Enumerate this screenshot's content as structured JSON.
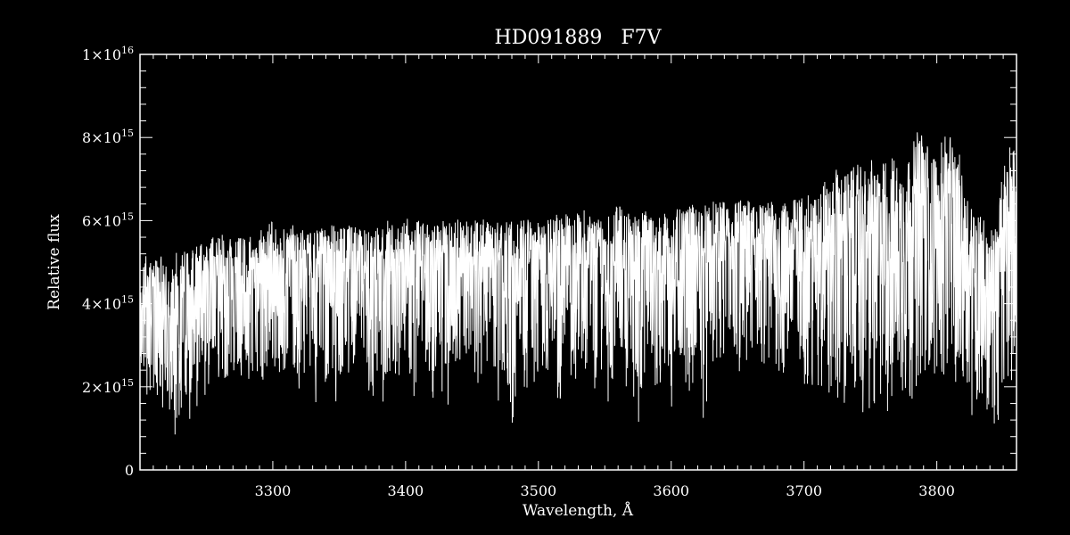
{
  "colors": {
    "background": "#000000",
    "foreground": "#ffffff"
  },
  "chart_data": {
    "type": "line",
    "title": "HD091889   F7V",
    "xlabel": "Wavelength, Å",
    "ylabel": "Relative flux",
    "xlim": [
      3200,
      3860
    ],
    "ylim": [
      0,
      1e+16
    ],
    "grid": false,
    "x_ticks": [
      {
        "value": 3300,
        "label": "3300"
      },
      {
        "value": 3400,
        "label": "3400"
      },
      {
        "value": 3500,
        "label": "3500"
      },
      {
        "value": 3600,
        "label": "3600"
      },
      {
        "value": 3700,
        "label": "3700"
      },
      {
        "value": 3800,
        "label": "3800"
      }
    ],
    "y_ticks": [
      {
        "value": 0,
        "label": "0",
        "exp": ""
      },
      {
        "value": 2000000000000000.0,
        "label": "2×10",
        "exp": "15"
      },
      {
        "value": 4000000000000000.0,
        "label": "4×10",
        "exp": "15"
      },
      {
        "value": 6000000000000000.0,
        "label": "6×10",
        "exp": "15"
      },
      {
        "value": 8000000000000000.0,
        "label": "8×10",
        "exp": "15"
      },
      {
        "value": 1e+16,
        "label": "1×10",
        "exp": "16"
      }
    ],
    "series": [
      {
        "x": [
          3200,
          3205,
          3210,
          3215,
          3220,
          3225,
          3230,
          3235,
          3240,
          3245,
          3250,
          3255,
          3260,
          3265,
          3270,
          3275,
          3280,
          3285,
          3290,
          3295,
          3300,
          3305,
          3310,
          3315,
          3320,
          3325,
          3330,
          3335,
          3340,
          3345,
          3350,
          3355,
          3360,
          3365,
          3370,
          3375,
          3380,
          3385,
          3390,
          3395,
          3400,
          3405,
          3410,
          3415,
          3420,
          3425,
          3430,
          3435,
          3440,
          3445,
          3450,
          3455,
          3460,
          3465,
          3470,
          3475,
          3480,
          3485,
          3490,
          3495,
          3500,
          3505,
          3510,
          3515,
          3520,
          3525,
          3530,
          3535,
          3540,
          3545,
          3550,
          3555,
          3560,
          3565,
          3570,
          3575,
          3580,
          3585,
          3590,
          3595,
          3600,
          3605,
          3610,
          3615,
          3620,
          3625,
          3630,
          3635,
          3640,
          3645,
          3650,
          3655,
          3660,
          3665,
          3670,
          3675,
          3680,
          3685,
          3690,
          3695,
          3700,
          3705,
          3710,
          3715,
          3720,
          3725,
          3730,
          3735,
          3740,
          3745,
          3750,
          3755,
          3760,
          3765,
          3770,
          3775,
          3780,
          3785,
          3790,
          3795,
          3800,
          3805,
          3810,
          3815,
          3820,
          3825,
          3830,
          3835,
          3840,
          3845,
          3850,
          3855,
          3860
        ],
        "max": [
          5400000000000000.0,
          5200000000000000.0,
          5000000000000000.0,
          5300000000000000.0,
          5100000000000000.0,
          5300000000000000.0,
          5400000000000000.0,
          5200000000000000.0,
          5300000000000000.0,
          5500000000000000.0,
          5400000000000000.0,
          5600000000000000.0,
          5700000000000000.0,
          5600000000000000.0,
          5700000000000000.0,
          5600000000000000.0,
          5700000000000000.0,
          5600000000000000.0,
          5800000000000000.0,
          5900000000000000.0,
          6000000000000000.0,
          5900000000000000.0,
          5800000000000000.0,
          5900000000000000.0,
          5900000000000000.0,
          5700000000000000.0,
          5800000000000000.0,
          5800000000000000.0,
          5900000000000000.0,
          5900000000000000.0,
          5900000000000000.0,
          5800000000000000.0,
          6000000000000000.0,
          5800000000000000.0,
          5900000000000000.0,
          5900000000000000.0,
          5800000000000000.0,
          6100000000000000.0,
          5900000000000000.0,
          5800000000000000.0,
          6100000000000000.0,
          5900000000000000.0,
          6000000000000000.0,
          5900000000000000.0,
          6000000000000000.0,
          6100000000000000.0,
          6000000000000000.0,
          6000000000000000.0,
          6100000000000000.0,
          6000000000000000.0,
          6000000000000000.0,
          6100000000000000.0,
          6000000000000000.0,
          5900000000000000.0,
          6000000000000000.0,
          6000000000000000.0,
          6100000000000000.0,
          6000000000000000.0,
          6100000000000000.0,
          6000000000000000.0,
          6100000000000000.0,
          6000000000000000.0,
          6100000000000000.0,
          6300000000000000.0,
          6200000000000000.0,
          6100000000000000.0,
          6200000000000000.0,
          6300000000000000.0,
          6200000000000000.0,
          6100000000000000.0,
          6300000000000000.0,
          6200000000000000.0,
          6400000000000000.0,
          6300000000000000.0,
          6200000000000000.0,
          6100000000000000.0,
          6300000000000000.0,
          6200000000000000.0,
          6100000000000000.0,
          6200000000000000.0,
          6100000000000000.0,
          6300000000000000.0,
          6200000000000000.0,
          6400000000000000.0,
          6300000000000000.0,
          6400000000000000.0,
          6500000000000000.0,
          6400000000000000.0,
          6500000000000000.0,
          6300000000000000.0,
          6600000000000000.0,
          6400000000000000.0,
          6600000000000000.0,
          6500000000000000.0,
          6400000000000000.0,
          6500000000000000.0,
          6300000000000000.0,
          6400000000000000.0,
          6600000000000000.0,
          6500000000000000.0,
          6800000000000000.0,
          6500000000000000.0,
          6700000000000000.0,
          7000000000000000.0,
          6800000000000000.0,
          7300000000000000.0,
          7100000000000000.0,
          7200000000000000.0,
          7400000000000000.0,
          7200000000000000.0,
          7500000000000000.0,
          7300000000000000.0,
          7400000000000000.0,
          7600000000000000.0,
          7500000000000000.0,
          7300000000000000.0,
          7600000000000000.0,
          8200000000000000.0,
          8100000000000000.0,
          7700000000000000.0,
          7600000000000000.0,
          8000000000000000.0,
          8100000000000000.0,
          7900000000000000.0,
          7200000000000000.0,
          6500000000000000.0,
          6300000000000000.0,
          6100000000000000.0,
          5800000000000000.0,
          5900000000000000.0,
          7300000000000000.0,
          7900000000000000.0,
          7700000000000000.0
        ],
        "min": [
          1800000000000000.0,
          1500000000000000.0,
          1900000000000000.0,
          1300000000000000.0,
          1600000000000000.0,
          600000000000000.0,
          1300000000000000.0,
          1400000000000000.0,
          900000000000000.0,
          1400000000000000.0,
          1900000000000000.0,
          2300000000000000.0,
          2000000000000000.0,
          2200000000000000.0,
          2400000000000000.0,
          2300000000000000.0,
          1900000000000000.0,
          2400000000000000.0,
          2200000000000000.0,
          2000000000000000.0,
          2500000000000000.0,
          2300000000000000.0,
          2000000000000000.0,
          2200000000000000.0,
          1900000000000000.0,
          2100000000000000.0,
          1000000000000000.0,
          2300000000000000.0,
          1600000000000000.0,
          2400000000000000.0,
          900000000000000.0,
          2200000000000000.0,
          1500000000000000.0,
          2300000000000000.0,
          2000000000000000.0,
          1600000000000000.0,
          2400000000000000.0,
          1000000000000000.0,
          2300000000000000.0,
          2200000000000000.0,
          2300000000000000.0,
          1100000000000000.0,
          2400000000000000.0,
          2200000000000000.0,
          1600000000000000.0,
          2300000000000000.0,
          800000000000000.0,
          2400000000000000.0,
          2300000000000000.0,
          2000000000000000.0,
          2100000000000000.0,
          1000000000000000.0,
          2400000000000000.0,
          2200000000000000.0,
          1500000000000000.0,
          2300000000000000.0,
          900000000000000.0,
          2500000000000000.0,
          1800000000000000.0,
          2300000000000000.0,
          1700000000000000.0,
          2400000000000000.0,
          2100000000000000.0,
          1300000000000000.0,
          2500000000000000.0,
          2200000000000000.0,
          1900000000000000.0,
          2400000000000000.0,
          800000000000000.0,
          2500000000000000.0,
          2300000000000000.0,
          1000000000000000.0,
          2500000000000000.0,
          2100000000000000.0,
          1700000000000000.0,
          800000000000000.0,
          2300000000000000.0,
          2400000000000000.0,
          1600000000000000.0,
          2500000000000000.0,
          1300000000000000.0,
          2600000000000000.0,
          2200000000000000.0,
          1700000000000000.0,
          2400000000000000.0,
          1000000000000000.0,
          2700000000000000.0,
          2000000000000000.0,
          2500000000000000.0,
          2800000000000000.0,
          1700000000000000.0,
          2600000000000000.0,
          2400000000000000.0,
          2800000000000000.0,
          2100000000000000.0,
          2300000000000000.0,
          2500000000000000.0,
          1800000000000000.0,
          2600000000000000.0,
          1800000000000000.0,
          1900000000000000.0,
          2200000000000000.0,
          1000000000000000.0,
          2000000000000000.0,
          1600000000000000.0,
          1200000000000000.0,
          1600000000000000.0,
          900000000000000.0,
          2000000000000000.0,
          1000000000000000.0,
          1500000000000000.0,
          900000000000000.0,
          1800000000000000.0,
          900000000000000.0,
          1900000000000000.0,
          1300000000000000.0,
          1600000000000000.0,
          2000000000000000.0,
          2200000000000000.0,
          1700000000000000.0,
          2300000000000000.0,
          2100000000000000.0,
          2400000000000000.0,
          1100000000000000.0,
          1600000000000000.0,
          1400000000000000.0,
          1100000000000000.0,
          1700000000000000.0,
          1100000000000000.0,
          1000000000000000.0,
          1500000000000000.0,
          2000000000000000.0,
          2600000000000000.0
        ],
        "avg": [
          4200000000000000.0,
          3500000000000000.0,
          3700000000000000.0,
          3400000000000000.0,
          3300000000000000.0,
          3600000000000000.0,
          3800000000000000.0,
          3500000000000000.0,
          3900000000000000.0,
          4200000000000000.0,
          4300000000000000.0,
          4400000000000000.0,
          4500000000000000.0,
          4300000000000000.0,
          4600000000000000.0,
          4500000000000000.0,
          4400000000000000.0,
          4600000000000000.0,
          4500000000000000.0,
          4700000000000000.0,
          4800000000000000.0,
          4600000000000000.0,
          4700000000000000.0,
          4600000000000000.0,
          4800000000000000.0,
          4700000000000000.0,
          4500000000000000.0,
          4800000000000000.0,
          4600000000000000.0,
          4800000000000000.0,
          4900000000000000.0,
          4700000000000000.0,
          4800000000000000.0,
          4600000000000000.0,
          4800000000000000.0,
          4700000000000000.0,
          4900000000000000.0,
          4800000000000000.0,
          4600000000000000.0,
          4800000000000000.0,
          4700000000000000.0,
          4900000000000000.0,
          4800000000000000.0,
          4700000000000000.0,
          4800000000000000.0,
          4700000000000000.0,
          4900000000000000.0,
          4800000000000000.0,
          4700000000000000.0,
          4900000000000000.0,
          4800000000000000.0,
          4700000000000000.0,
          4900000000000000.0,
          4800000000000000.0,
          4600000000000000.0,
          4900000000000000.0,
          4800000000000000.0,
          4700000000000000.0,
          4900000000000000.0,
          4800000000000000.0,
          4900000000000000.0,
          5000000000000000.0,
          4800000000000000.0,
          5000000000000000.0,
          4900000000000000.0,
          4800000000000000.0,
          5000000000000000.0,
          4900000000000000.0,
          4800000000000000.0,
          5000000000000000.0,
          4900000000000000.0,
          4800000000000000.0,
          5000000000000000.0,
          4900000000000000.0,
          4800000000000000.0,
          5100000000000000.0,
          4900000000000000.0,
          5000000000000000.0,
          4800000000000000.0,
          5100000000000000.0,
          5000000000000000.0,
          4900000000000000.0,
          5100000000000000.0,
          5000000000000000.0,
          5200000000000000.0,
          5000000000000000.0,
          5100000000000000.0,
          5200000000000000.0,
          5000000000000000.0,
          5200000000000000.0,
          5300000000000000.0,
          5100000000000000.0,
          5200000000000000.0,
          5300000000000000.0,
          5100000000000000.0,
          5200000000000000.0,
          5300000000000000.0,
          5100000000000000.0,
          5200000000000000.0,
          5300000000000000.0,
          5400000000000000.0,
          5200000000000000.0,
          5300000000000000.0,
          5500000000000000.0,
          5300000000000000.0,
          5600000000000000.0,
          5400000000000000.0,
          5200000000000000.0,
          5500000000000000.0,
          5300000000000000.0,
          5600000000000000.0,
          5400000000000000.0,
          5500000000000000.0,
          5700000000000000.0,
          5600000000000000.0,
          5400000000000000.0,
          5700000000000000.0,
          6400000000000000.0,
          6100000000000000.0,
          5600000000000000.0,
          5500000000000000.0,
          6200000000000000.0,
          6300000000000000.0,
          6000000000000000.0,
          5300000000000000.0,
          4900000000000000.0,
          4600000000000000.0,
          4500000000000000.0,
          4400000000000000.0,
          4300000000000000.0,
          5400000000000000.0,
          6000000000000000.0,
          5900000000000000.0
        ]
      }
    ]
  }
}
